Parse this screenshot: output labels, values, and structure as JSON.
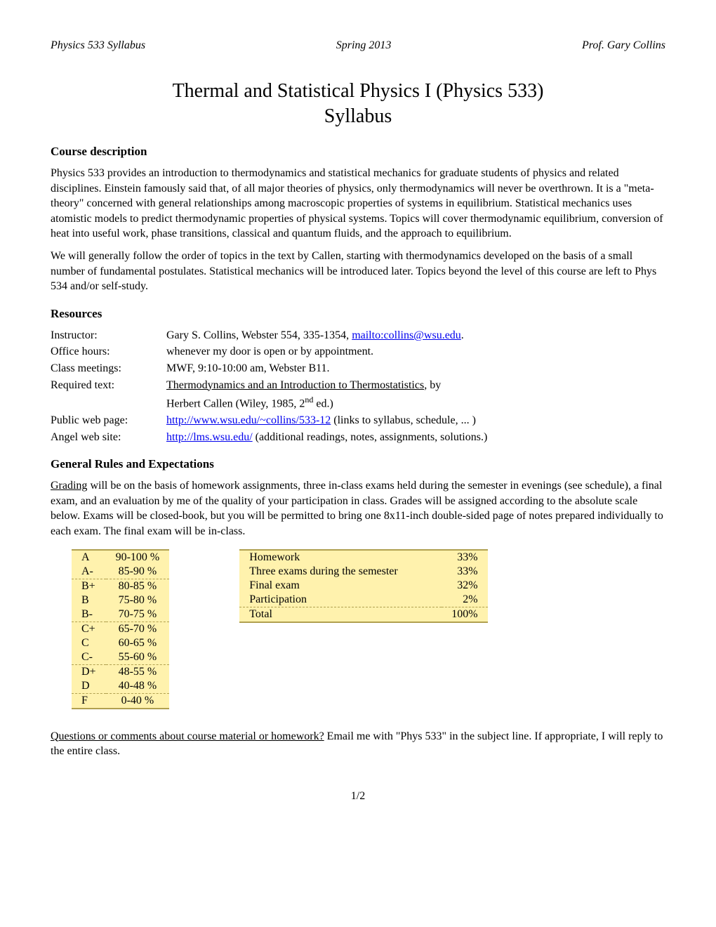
{
  "header": {
    "left": "Physics 533 Syllabus",
    "center": "Spring 2013",
    "right": "Prof. Gary Collins"
  },
  "title": "Thermal and Statistical Physics I (Physics 533)",
  "subtitle": "Syllabus",
  "sections": {
    "course_desc": {
      "heading": "Course description",
      "p1": "Physics 533 provides an introduction to thermodynamics and statistical mechanics for graduate students of physics and related disciplines.  Einstein famously said that, of all major theories of physics, only thermodynamics will never be overthrown.  It is a \"meta-theory\" concerned with general relationships among macroscopic properties of systems in equilibrium.  Statistical mechanics uses atomistic models to predict thermodynamic properties of physical systems.  Topics will cover thermodynamic equilibrium, conversion of heat into useful work, phase transitions, classical and quantum fluids, and the approach to equilibrium.",
      "p2": "We will generally follow the order of topics in the text by Callen, starting with thermodynamics developed on the basis of a small number of fundamental postulates. Statistical mechanics will be introduced later.  Topics beyond the level of this course are left to Phys 534 and/or self-study."
    },
    "resources": {
      "heading": "Resources",
      "instructor_label": "Instructor:",
      "instructor_text": "Gary S. Collins, Webster 554, 335-1354, ",
      "instructor_link": "mailto:collins@wsu.edu",
      "instructor_suffix": ".",
      "office_label": "Office hours:",
      "office_text": "whenever my door is open or by appointment.",
      "class_label": "Class meetings:",
      "class_text": "MWF, 9:10-10:00 am, Webster B11.",
      "text_label": "Required text:",
      "text_title": "Thermodynamics and an Introduction to Thermostatistics",
      "text_by": ", by",
      "text_author_prefix": "Herbert Callen (Wiley, 1985, 2",
      "text_author_sup": "nd",
      "text_author_suffix": " ed.)",
      "web_label": "Public web page:",
      "web_link": "http://www.wsu.edu/~collins/533-12",
      "web_suffix": " (links to syllabus, schedule, ... )",
      "angel_label": "Angel web site:",
      "angel_link": "http://lms.wsu.edu/",
      "angel_suffix": "  (additional readings, notes, assignments, solutions.)"
    },
    "rules": {
      "heading": "General Rules and Expectations",
      "grading_underline": "Grading",
      "grading_rest": " will be on the basis of homework assignments, three in-class exams held during the semester in evenings (see schedule), a final exam, and an evaluation by me of the quality of your participation in class.  Grades will be assigned according to the absolute scale below.  Exams will be closed-book, but you will be permitted to bring one 8x11-inch double-sided page of notes prepared individually to each exam.   The final exam will be in-class."
    },
    "questions": {
      "underline": "Questions or comments about course material or homework?",
      "rest": "  Email me with \"Phys 533\" in the subject line.  If appropriate, I will reply to the entire class."
    }
  },
  "grade_table": {
    "background_color": "#fff2ad",
    "border_color": "#b0a050",
    "rows": [
      {
        "grade": "A",
        "range": "90-100 %",
        "sep": false
      },
      {
        "grade": "A-",
        "range": "85-90 %",
        "sep": true
      },
      {
        "grade": "B+",
        "range": "80-85 %",
        "sep": false
      },
      {
        "grade": "B",
        "range": "75-80 %",
        "sep": false
      },
      {
        "grade": "B-",
        "range": "70-75 %",
        "sep": true
      },
      {
        "grade": "C+",
        "range": "65-70 %",
        "sep": false
      },
      {
        "grade": "C",
        "range": "60-65 %",
        "sep": false
      },
      {
        "grade": "C-",
        "range": "55-60 %",
        "sep": true
      },
      {
        "grade": "D+",
        "range": "48-55 %",
        "sep": false
      },
      {
        "grade": "D",
        "range": "40-48 %",
        "sep": true
      },
      {
        "grade": "F",
        "range": "0-40 %",
        "sep": false
      }
    ]
  },
  "weight_table": {
    "rows": [
      {
        "label": "Homework",
        "value": "33%"
      },
      {
        "label": "Three exams during the semester",
        "value": "33%"
      },
      {
        "label": "Final exam",
        "value": "32%"
      },
      {
        "label": "Participation",
        "value": "2%"
      },
      {
        "label": "Total",
        "value": "100%"
      }
    ]
  },
  "pagenum": "1/2"
}
